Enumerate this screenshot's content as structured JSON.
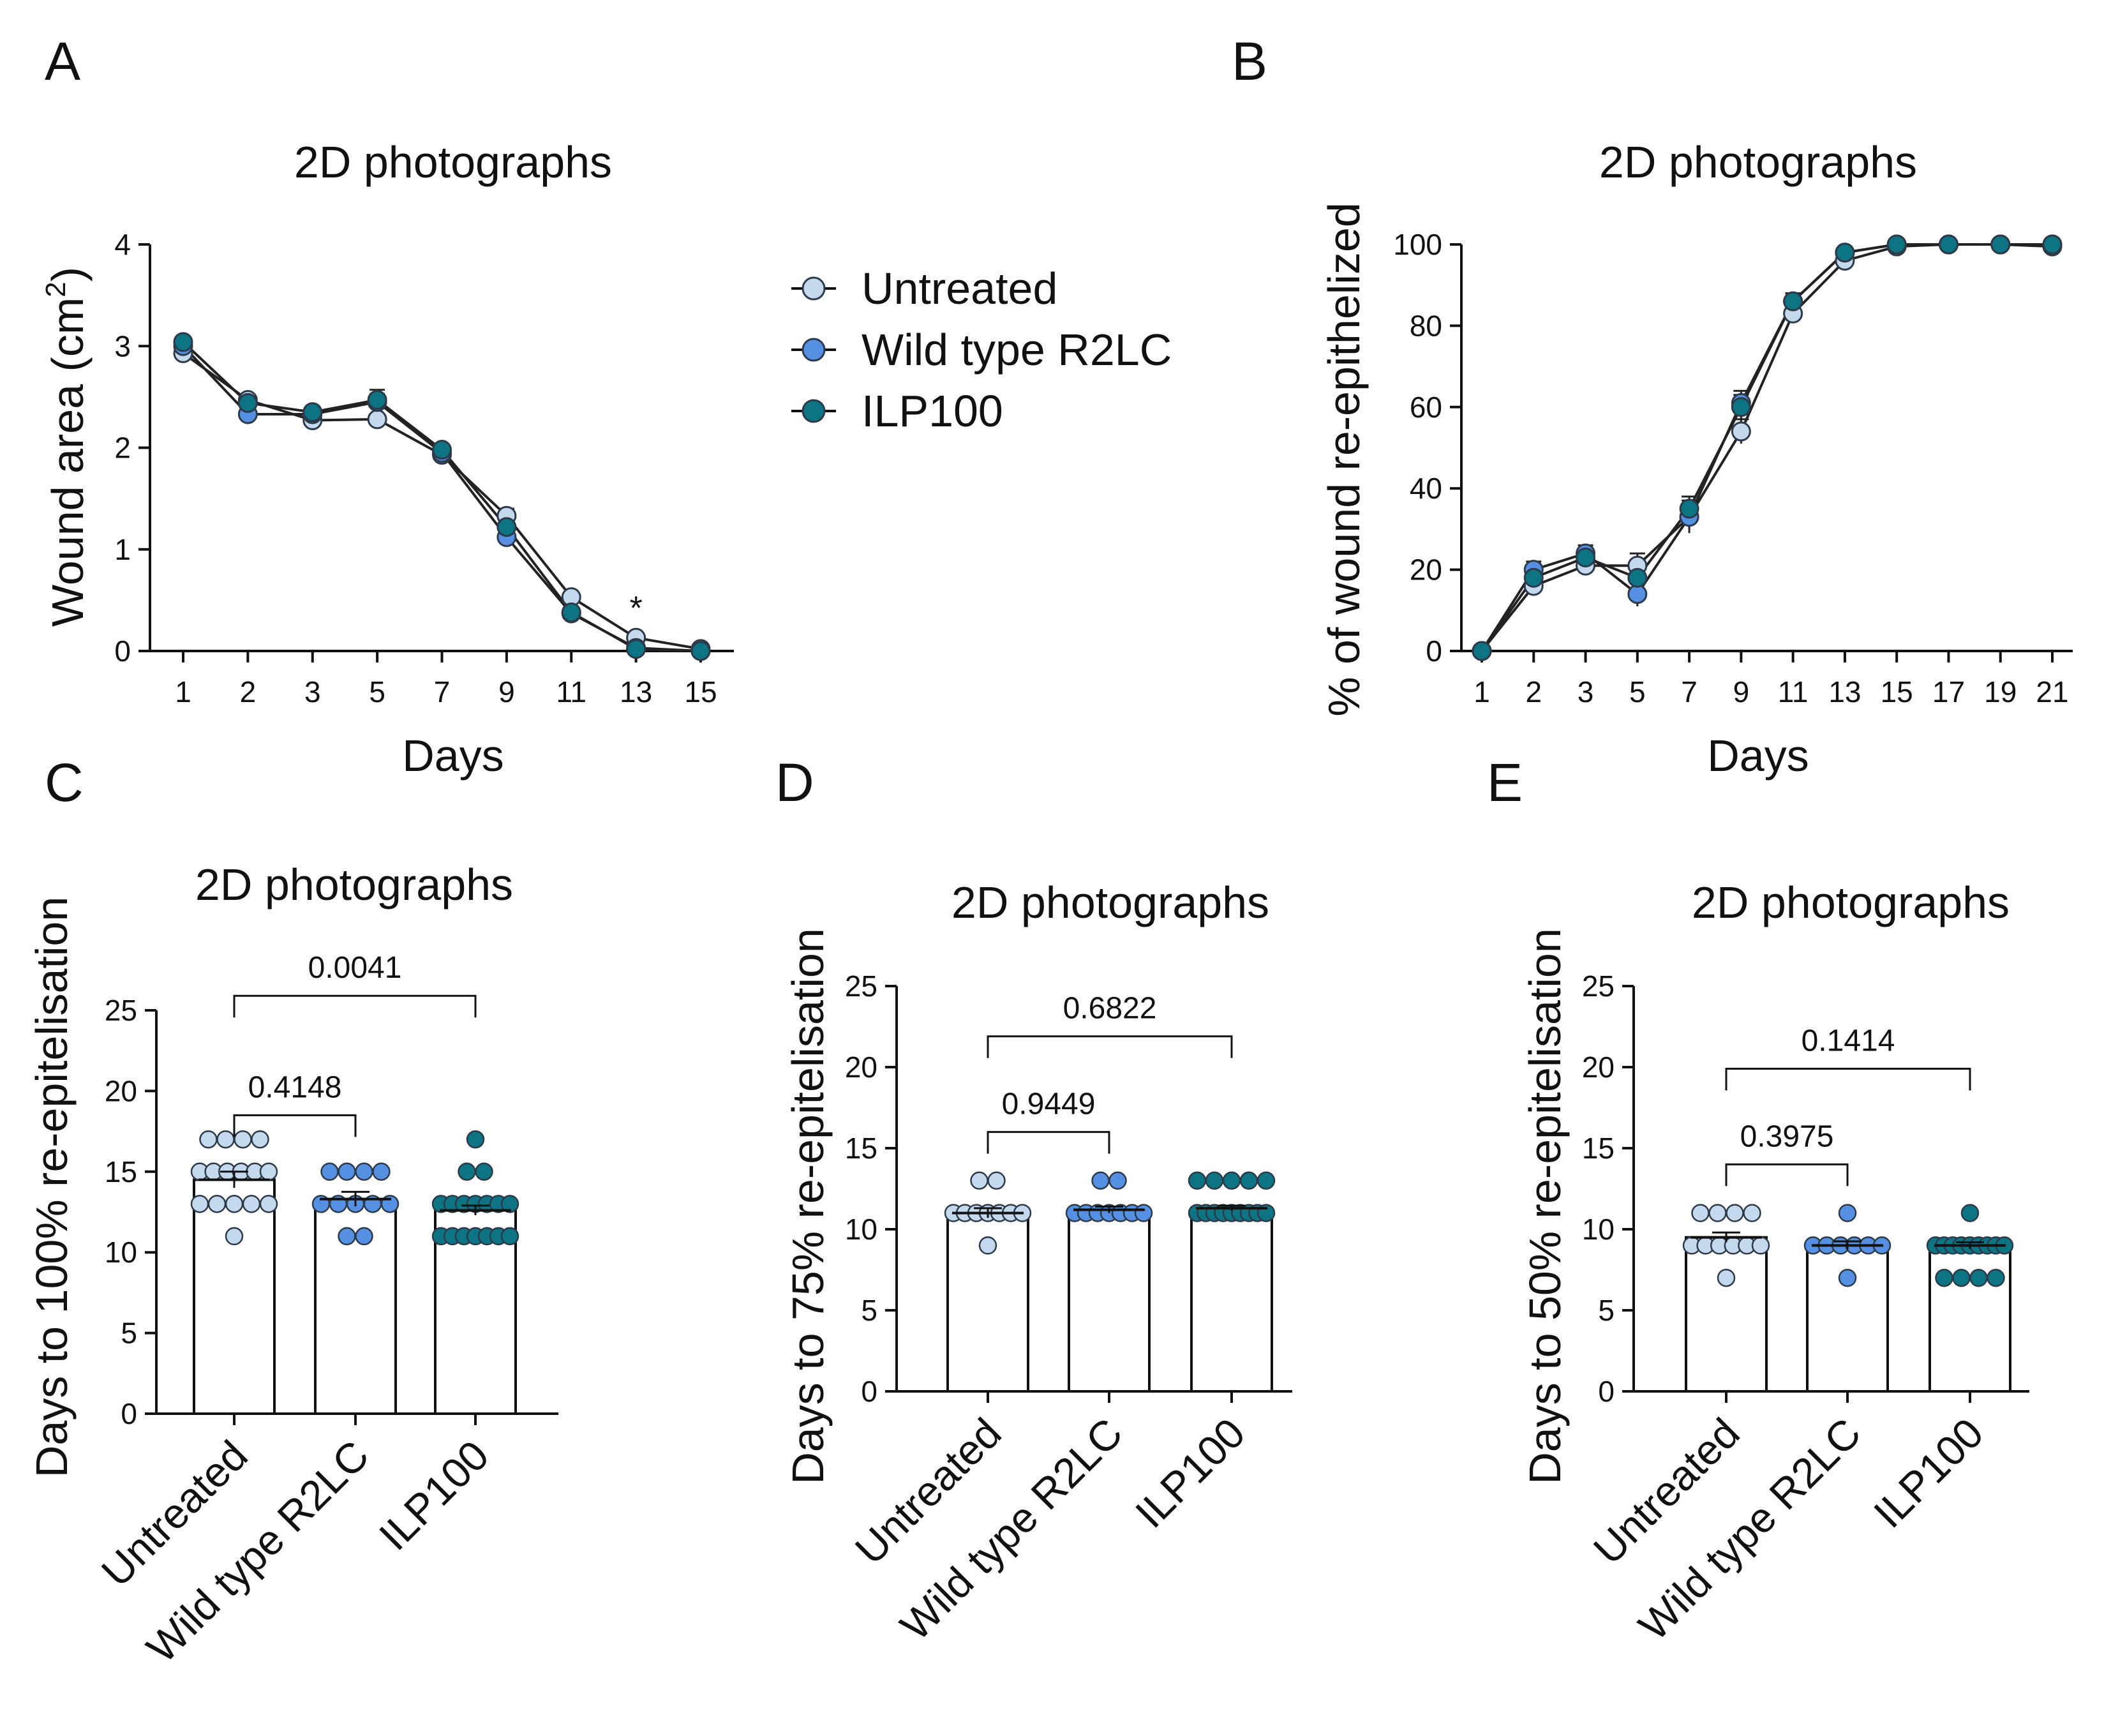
{
  "colors": {
    "untreated": "#c4d9ee",
    "wildtype": "#5590e3",
    "ilp100": "#0d7484",
    "axis": "#111111",
    "bar_fill": "#ffffff"
  },
  "legend": {
    "items": [
      {
        "key": "untreated",
        "label": "Untreated"
      },
      {
        "key": "wildtype",
        "label": "Wild type R2LC"
      },
      {
        "key": "ilp100",
        "label": "ILP100"
      }
    ]
  },
  "chart_data": [
    {
      "panel": "A",
      "type": "line",
      "title": "2D photographs",
      "xlabel": "Days",
      "ylabel": "Wound area (cm",
      "ylabel_sup": "2",
      "ylabel_close": ")",
      "categories": [
        "1",
        "2",
        "3",
        "5",
        "7",
        "9",
        "11",
        "13",
        "15"
      ],
      "ylim": [
        0,
        4
      ],
      "yticks": [
        0,
        1,
        2,
        3,
        4
      ],
      "annotation": {
        "text": "*",
        "category": "13",
        "y": 0.45
      },
      "series": [
        {
          "key": "untreated",
          "name": "Untreated",
          "values": [
            2.93,
            2.47,
            2.27,
            2.28,
            1.93,
            1.33,
            0.53,
            0.13,
            0.02
          ],
          "errors": [
            0.05,
            0.04,
            0.05,
            0.05,
            0.04,
            0.07,
            0.05,
            0.03,
            0.01
          ]
        },
        {
          "key": "wildtype",
          "name": "Wild type R2LC",
          "values": [
            3.0,
            2.33,
            2.33,
            2.45,
            1.95,
            1.12,
            0.37,
            0.03,
            0.0
          ],
          "errors": [
            0.05,
            0.04,
            0.06,
            0.08,
            0.04,
            0.06,
            0.06,
            0.02,
            0.0
          ]
        },
        {
          "key": "ilp100",
          "name": "ILP100",
          "values": [
            3.04,
            2.44,
            2.35,
            2.47,
            1.98,
            1.22,
            0.38,
            0.02,
            0.0
          ],
          "errors": [
            0.04,
            0.04,
            0.05,
            0.1,
            0.04,
            0.06,
            0.05,
            0.01,
            0.0
          ]
        }
      ]
    },
    {
      "panel": "B",
      "type": "line",
      "title": "2D photographs",
      "xlabel": "Days",
      "ylabel": "% of wound re-epithelized",
      "categories": [
        "1",
        "2",
        "3",
        "5",
        "7",
        "9",
        "11",
        "13",
        "15",
        "17",
        "19",
        "21"
      ],
      "ylim": [
        0,
        100
      ],
      "yticks": [
        0,
        20,
        40,
        60,
        80,
        100
      ],
      "series": [
        {
          "key": "untreated",
          "name": "Untreated",
          "values": [
            0,
            16,
            21,
            21,
            33,
            54,
            83,
            96,
            99.5,
            100,
            100,
            99.5
          ],
          "errors": [
            0,
            2,
            2,
            3,
            3,
            3,
            2,
            1,
            0.5,
            0,
            0,
            0
          ]
        },
        {
          "key": "wildtype",
          "name": "Wild type R2LC",
          "values": [
            0,
            20,
            24,
            14,
            33,
            61,
            86,
            98,
            100,
            100,
            100,
            100
          ],
          "errors": [
            0,
            2,
            2,
            3,
            4,
            3,
            2,
            1,
            0,
            0,
            0,
            0
          ]
        },
        {
          "key": "ilp100",
          "name": "ILP100",
          "values": [
            0,
            18,
            23,
            18,
            35,
            60,
            86,
            98,
            100,
            100,
            100,
            100
          ],
          "errors": [
            0,
            2,
            2,
            3,
            3,
            3,
            2,
            1,
            0,
            0,
            0,
            0
          ]
        }
      ]
    },
    {
      "panel": "C",
      "type": "bar",
      "title": "2D photographs",
      "ylabel": "Days to 100% re-epitelisation",
      "categories": [
        "Untreated",
        "Wild type R2LC",
        "ILP100"
      ],
      "ylim": [
        0,
        25
      ],
      "yticks": [
        0,
        5,
        10,
        15,
        20,
        25
      ],
      "means": [
        14.5,
        13.3,
        12.6
      ],
      "errors": [
        0.5,
        0.45,
        0.3
      ],
      "points": [
        [
          11,
          13,
          13,
          13,
          13,
          13,
          15,
          15,
          15,
          15,
          15,
          15,
          17,
          17,
          17,
          17
        ],
        [
          11,
          11,
          13,
          13,
          13,
          13,
          13,
          15,
          15,
          15,
          15
        ],
        [
          11,
          11,
          11,
          11,
          11,
          11,
          11,
          13,
          13,
          13,
          13,
          13,
          13,
          13,
          15,
          15,
          17
        ]
      ],
      "comparisons": [
        {
          "from": 0,
          "to": 1,
          "label": "0.4148",
          "y": 18.5
        },
        {
          "from": 0,
          "to": 2,
          "label": "0.0041",
          "y": 25.9
        }
      ]
    },
    {
      "panel": "D",
      "type": "bar",
      "title": "2D photographs",
      "ylabel": "Days to 75% re-epitelisation",
      "categories": [
        "Untreated",
        "Wild type R2LC",
        "ILP100"
      ],
      "ylim": [
        0,
        25
      ],
      "yticks": [
        0,
        5,
        10,
        15,
        20,
        25
      ],
      "means": [
        11.0,
        11.2,
        11.3
      ],
      "errors": [
        0.3,
        0.2,
        0.15
      ],
      "points": [
        [
          9,
          11,
          11,
          11,
          11,
          11,
          11,
          11,
          13,
          13
        ],
        [
          11,
          11,
          11,
          11,
          11,
          11,
          11,
          13,
          13
        ],
        [
          11,
          11,
          11,
          11,
          11,
          11,
          11,
          11,
          11,
          13,
          13,
          13,
          13,
          13
        ]
      ],
      "comparisons": [
        {
          "from": 0,
          "to": 1,
          "label": "0.9449",
          "y": 16.0
        },
        {
          "from": 0,
          "to": 2,
          "label": "0.6822",
          "y": 21.9
        }
      ]
    },
    {
      "panel": "E",
      "type": "bar",
      "title": "2D photographs",
      "ylabel": "Days to 50% re-epitelisation",
      "categories": [
        "Untreated",
        "Wild type R2LC",
        "ILP100"
      ],
      "ylim": [
        0,
        25
      ],
      "yticks": [
        0,
        5,
        10,
        15,
        20,
        25
      ],
      "means": [
        9.5,
        9.0,
        9.0
      ],
      "errors": [
        0.3,
        0.25,
        0.2
      ],
      "points": [
        [
          7,
          9,
          9,
          9,
          9,
          9,
          9,
          11,
          11,
          11,
          11
        ],
        [
          7,
          9,
          9,
          9,
          9,
          9,
          9,
          11
        ],
        [
          7,
          7,
          7,
          7,
          9,
          9,
          9,
          9,
          9,
          9,
          9,
          9,
          9,
          11
        ]
      ],
      "comparisons": [
        {
          "from": 0,
          "to": 1,
          "label": "0.3975",
          "y": 14.0
        },
        {
          "from": 0,
          "to": 2,
          "label": "0.1414",
          "y": 19.9
        }
      ]
    }
  ]
}
